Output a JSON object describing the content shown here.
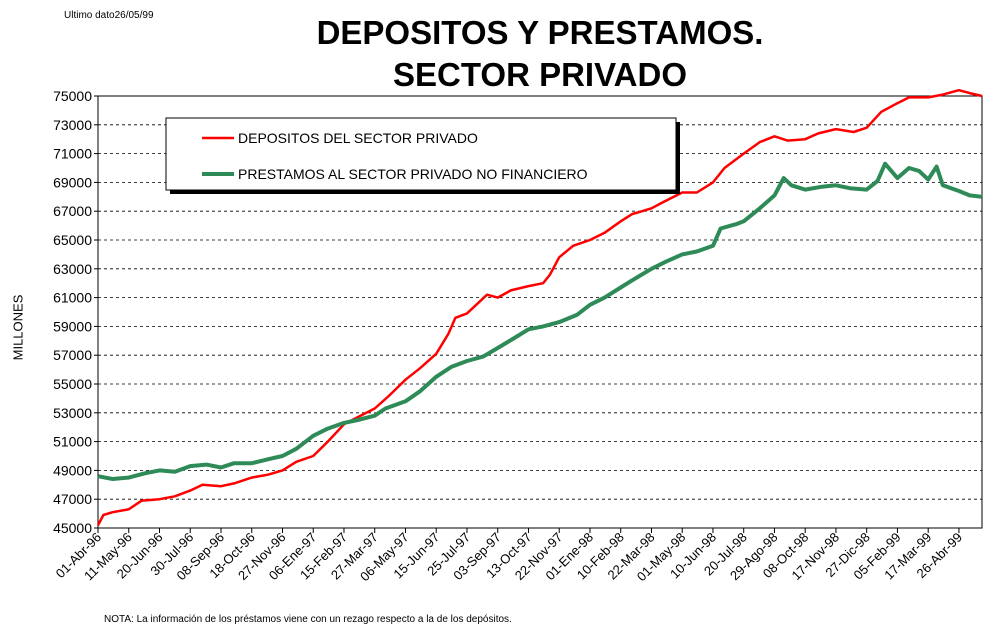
{
  "top_note": "Ultimo dato26/05/99",
  "footnote": "NOTA: La información de los préstamos viene con un rezago respecto a la de los depósitos.",
  "colors": {
    "deposits": "#ff0000",
    "loans": "#2e8b57"
  },
  "chart_data": {
    "type": "line",
    "title": [
      "DEPOSITOS Y PRESTAMOS.",
      "SECTOR PRIVADO"
    ],
    "xlabel": "",
    "ylabel": "MILLONES",
    "ylim": [
      45000,
      75000
    ],
    "yticks": [
      45000,
      47000,
      49000,
      51000,
      53000,
      55000,
      57000,
      59000,
      61000,
      63000,
      65000,
      67000,
      69000,
      71000,
      73000,
      75000
    ],
    "xlim": [
      "1996-04-01",
      "1999-05-26"
    ],
    "xtick_labels": [
      "01-Abr-96",
      "11-May-96",
      "20-Jun-96",
      "30-Jul-96",
      "08-Sep-96",
      "18-Oct-96",
      "27-Nov-96",
      "06-Ene-97",
      "15-Feb-97",
      "27-Mar-97",
      "06-May-97",
      "15-Jun-97",
      "25-Jul-97",
      "03-Sep-97",
      "13-Oct-97",
      "22-Nov-97",
      "01-Ene-98",
      "10-Feb-98",
      "22-Mar-98",
      "01-May-98",
      "10-Jun-98",
      "20-Jul-98",
      "29-Ago-98",
      "08-Oct-98",
      "17-Nov-98",
      "27-Dic-98",
      "05-Feb-99",
      "17-Mar-99",
      "26-Abr-99"
    ],
    "grid": "horizontal-dashed",
    "legend_position": "top-left",
    "series": [
      {
        "name": "DEPOSITOS DEL SECTOR PRIVADO",
        "color": "#ff0000",
        "points": [
          [
            "1996-04-01",
            45200
          ],
          [
            "1996-04-08",
            45900
          ],
          [
            "1996-04-20",
            46100
          ],
          [
            "1996-05-11",
            46300
          ],
          [
            "1996-05-28",
            46900
          ],
          [
            "1996-06-20",
            47000
          ],
          [
            "1996-07-10",
            47200
          ],
          [
            "1996-07-30",
            47600
          ],
          [
            "1996-08-15",
            48000
          ],
          [
            "1996-09-08",
            47900
          ],
          [
            "1996-09-25",
            48100
          ],
          [
            "1996-10-18",
            48500
          ],
          [
            "1996-11-08",
            48700
          ],
          [
            "1996-11-27",
            49000
          ],
          [
            "1996-12-15",
            49600
          ],
          [
            "1997-01-06",
            50000
          ],
          [
            "1997-01-25",
            51000
          ],
          [
            "1997-02-15",
            52200
          ],
          [
            "1997-03-05",
            52700
          ],
          [
            "1997-03-27",
            53300
          ],
          [
            "1997-04-15",
            54200
          ],
          [
            "1997-05-06",
            55300
          ],
          [
            "1997-05-25",
            56100
          ],
          [
            "1997-06-15",
            57100
          ],
          [
            "1997-07-01",
            58500
          ],
          [
            "1997-07-10",
            59600
          ],
          [
            "1997-07-25",
            59900
          ],
          [
            "1997-08-10",
            60700
          ],
          [
            "1997-08-20",
            61200
          ],
          [
            "1997-09-03",
            61000
          ],
          [
            "1997-09-20",
            61500
          ],
          [
            "1997-10-13",
            61800
          ],
          [
            "1997-11-01",
            62000
          ],
          [
            "1997-11-10",
            62600
          ],
          [
            "1997-11-22",
            63800
          ],
          [
            "1997-12-10",
            64600
          ],
          [
            "1998-01-01",
            65000
          ],
          [
            "1998-01-20",
            65500
          ],
          [
            "1998-02-10",
            66300
          ],
          [
            "1998-02-25",
            66800
          ],
          [
            "1998-03-22",
            67200
          ],
          [
            "1998-04-05",
            67600
          ],
          [
            "1998-05-01",
            68300
          ],
          [
            "1998-05-20",
            68300
          ],
          [
            "1998-06-10",
            69000
          ],
          [
            "1998-06-25",
            70000
          ],
          [
            "1998-07-20",
            71000
          ],
          [
            "1998-08-10",
            71800
          ],
          [
            "1998-08-29",
            72200
          ],
          [
            "1998-09-15",
            71900
          ],
          [
            "1998-10-08",
            72000
          ],
          [
            "1998-10-25",
            72400
          ],
          [
            "1998-11-17",
            72700
          ],
          [
            "1998-12-10",
            72500
          ],
          [
            "1998-12-27",
            72800
          ],
          [
            "1999-01-15",
            73900
          ],
          [
            "1999-02-05",
            74500
          ],
          [
            "1999-02-20",
            74900
          ],
          [
            "1999-03-17",
            74900
          ],
          [
            "1999-04-05",
            75100
          ],
          [
            "1999-04-26",
            75400
          ],
          [
            "1999-05-10",
            75200
          ],
          [
            "1999-05-26",
            75000
          ]
        ]
      },
      {
        "name": "PRESTAMOS AL SECTOR PRIVADO NO FINANCIERO",
        "color": "#2e8b57",
        "points": [
          [
            "1996-04-01",
            48600
          ],
          [
            "1996-04-20",
            48400
          ],
          [
            "1996-05-11",
            48500
          ],
          [
            "1996-06-01",
            48800
          ],
          [
            "1996-06-20",
            49000
          ],
          [
            "1996-07-10",
            48900
          ],
          [
            "1996-07-30",
            49300
          ],
          [
            "1996-08-20",
            49400
          ],
          [
            "1996-09-08",
            49200
          ],
          [
            "1996-09-25",
            49500
          ],
          [
            "1996-10-18",
            49500
          ],
          [
            "1996-11-10",
            49800
          ],
          [
            "1996-11-27",
            50000
          ],
          [
            "1996-12-15",
            50500
          ],
          [
            "1997-01-06",
            51400
          ],
          [
            "1997-01-25",
            51900
          ],
          [
            "1997-02-15",
            52300
          ],
          [
            "1997-03-05",
            52500
          ],
          [
            "1997-03-27",
            52800
          ],
          [
            "1997-04-10",
            53300
          ],
          [
            "1997-05-06",
            53800
          ],
          [
            "1997-05-25",
            54500
          ],
          [
            "1997-06-15",
            55500
          ],
          [
            "1997-07-05",
            56200
          ],
          [
            "1997-07-25",
            56600
          ],
          [
            "1997-08-15",
            56900
          ],
          [
            "1997-09-03",
            57500
          ],
          [
            "1997-09-25",
            58200
          ],
          [
            "1997-10-13",
            58800
          ],
          [
            "1997-11-01",
            59000
          ],
          [
            "1997-11-22",
            59300
          ],
          [
            "1997-12-15",
            59800
          ],
          [
            "1998-01-01",
            60500
          ],
          [
            "1998-01-20",
            61000
          ],
          [
            "1998-02-10",
            61700
          ],
          [
            "1998-02-25",
            62200
          ],
          [
            "1998-03-22",
            63000
          ],
          [
            "1998-04-10",
            63500
          ],
          [
            "1998-05-01",
            64000
          ],
          [
            "1998-05-20",
            64200
          ],
          [
            "1998-06-10",
            64600
          ],
          [
            "1998-06-20",
            65800
          ],
          [
            "1998-07-10",
            66100
          ],
          [
            "1998-07-20",
            66300
          ],
          [
            "1998-08-10",
            67200
          ],
          [
            "1998-08-29",
            68100
          ],
          [
            "1998-09-10",
            69300
          ],
          [
            "1998-09-20",
            68800
          ],
          [
            "1998-10-08",
            68500
          ],
          [
            "1998-10-30",
            68700
          ],
          [
            "1998-11-17",
            68800
          ],
          [
            "1998-12-05",
            68600
          ],
          [
            "1998-12-27",
            68500
          ],
          [
            "1999-01-10",
            69100
          ],
          [
            "1999-01-20",
            70300
          ],
          [
            "1999-02-05",
            69300
          ],
          [
            "1999-02-20",
            70000
          ],
          [
            "1999-03-05",
            69800
          ],
          [
            "1999-03-17",
            69200
          ],
          [
            "1999-03-28",
            70100
          ],
          [
            "1999-04-05",
            68800
          ],
          [
            "1999-04-26",
            68400
          ],
          [
            "1999-05-10",
            68100
          ],
          [
            "1999-05-26",
            68000
          ]
        ]
      }
    ]
  }
}
